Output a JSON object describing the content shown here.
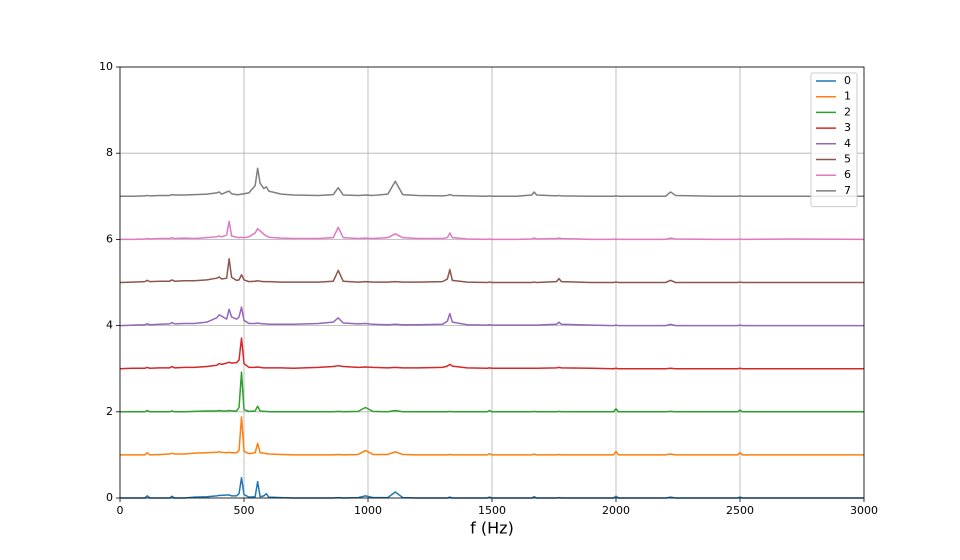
{
  "chart_data": {
    "type": "line",
    "x": [
      0,
      50,
      100,
      110,
      120,
      160,
      200,
      210,
      220,
      260,
      300,
      350,
      390,
      400,
      410,
      430,
      440,
      450,
      470,
      480,
      490,
      500,
      520,
      545,
      555,
      565,
      580,
      590,
      600,
      650,
      700,
      800,
      860,
      880,
      900,
      960,
      990,
      1020,
      1080,
      1110,
      1140,
      1200,
      1300,
      1320,
      1330,
      1340,
      1400,
      1480,
      1490,
      1500,
      1600,
      1660,
      1670,
      1680,
      1760,
      1770,
      1780,
      1900,
      1990,
      2000,
      2010,
      2200,
      2220,
      2240,
      2400,
      2490,
      2500,
      2510,
      2700,
      3000
    ],
    "series": [
      {
        "name": "0",
        "color": "#1f77b4",
        "values": [
          0,
          0,
          0,
          0.05,
          0,
          0,
          0,
          0.04,
          0,
          0,
          0.02,
          0.03,
          0.05,
          0.06,
          0.06,
          0.07,
          0.07,
          0.05,
          0.05,
          0.1,
          0.47,
          0.08,
          0.02,
          0.03,
          0.38,
          0.03,
          0.05,
          0.1,
          0.02,
          0.01,
          0,
          0,
          0,
          0.01,
          0,
          0.01,
          0.05,
          0.01,
          0.01,
          0.14,
          0.01,
          0,
          0,
          0,
          0.02,
          0,
          0,
          0,
          0.02,
          0,
          0,
          0,
          0.03,
          0,
          0,
          0.01,
          0,
          0,
          0,
          0.04,
          0,
          0,
          0.02,
          0,
          0,
          0,
          0.02,
          0,
          0,
          0
        ]
      },
      {
        "name": "1",
        "color": "#ff7f0e",
        "values": [
          1,
          1,
          1,
          1.05,
          1,
          1.01,
          1.02,
          1.04,
          1.02,
          1.02,
          1.04,
          1.05,
          1.06,
          1.07,
          1.06,
          1.05,
          1.06,
          1.05,
          1.05,
          1.1,
          1.88,
          1.08,
          1.03,
          1.05,
          1.27,
          1.05,
          1.04,
          1.03,
          1.02,
          1.01,
          1,
          1,
          1,
          1.01,
          1,
          1.01,
          1.1,
          1.01,
          1.01,
          1.07,
          1.01,
          1,
          1,
          1,
          1.01,
          1,
          1,
          1,
          1.03,
          1,
          1,
          1,
          1.02,
          1,
          1,
          1.01,
          1,
          1,
          1,
          1.08,
          1,
          1,
          1.02,
          1,
          1,
          1,
          1.05,
          1,
          1,
          1
        ]
      },
      {
        "name": "2",
        "color": "#2ca02c",
        "values": [
          2,
          2,
          2,
          2.03,
          2,
          2,
          2,
          2.02,
          2,
          2,
          2.01,
          2.02,
          2.02,
          2.03,
          2.02,
          2.02,
          2.03,
          2.02,
          2.02,
          2.1,
          2.92,
          2.05,
          2.01,
          2.02,
          2.13,
          2.02,
          2.01,
          2.01,
          2,
          2,
          2,
          2,
          2,
          2.01,
          2,
          2.01,
          2.1,
          2.01,
          2,
          2.03,
          2,
          2,
          2,
          2,
          2.01,
          2,
          2,
          2,
          2.03,
          2,
          2,
          2,
          2.01,
          2,
          2,
          2.01,
          2,
          2,
          2,
          2.07,
          2,
          2,
          2.01,
          2,
          2,
          2,
          2.04,
          2,
          2,
          2
        ]
      },
      {
        "name": "3",
        "color": "#d62728",
        "values": [
          3,
          3.01,
          3.01,
          3.03,
          3.01,
          3.02,
          3.02,
          3.05,
          3.02,
          3.03,
          3.03,
          3.05,
          3.08,
          3.12,
          3.1,
          3.13,
          3.15,
          3.13,
          3.14,
          3.2,
          3.71,
          3.12,
          3.03,
          3.03,
          3.04,
          3.03,
          3.02,
          3.02,
          3.02,
          3.02,
          3.01,
          3.03,
          3.05,
          3.07,
          3.05,
          3.03,
          3.04,
          3.03,
          3.02,
          3.03,
          3.02,
          3.02,
          3.03,
          3.06,
          3.1,
          3.06,
          3.02,
          3.01,
          3.02,
          3.01,
          3.01,
          3.01,
          3.01,
          3.01,
          3.02,
          3.03,
          3.02,
          3.01,
          3,
          3.01,
          3,
          3,
          3.01,
          3,
          3,
          3,
          3.01,
          3,
          3,
          3
        ]
      },
      {
        "name": "4",
        "color": "#9467bd",
        "values": [
          4,
          4.01,
          4.02,
          4.04,
          4.02,
          4.03,
          4.04,
          4.07,
          4.04,
          4.05,
          4.05,
          4.08,
          4.18,
          4.25,
          4.22,
          4.15,
          4.38,
          4.2,
          4.15,
          4.2,
          4.43,
          4.12,
          4.05,
          4.05,
          4.06,
          4.05,
          4.04,
          4.04,
          4.03,
          4.03,
          4.03,
          4.05,
          4.08,
          4.18,
          4.06,
          4.04,
          4.05,
          4.03,
          4.02,
          4.03,
          4.02,
          4.02,
          4.03,
          4.1,
          4.28,
          4.08,
          4.02,
          4.01,
          4.02,
          4.01,
          4.01,
          4.01,
          4.01,
          4.01,
          4.03,
          4.08,
          4.03,
          4.01,
          4,
          4.01,
          4,
          4,
          4.03,
          4,
          4,
          4,
          4.01,
          4,
          4,
          4
        ]
      },
      {
        "name": "5",
        "color": "#8c564b",
        "values": [
          5,
          5.01,
          5.02,
          5.05,
          5.02,
          5.03,
          5.03,
          5.06,
          5.03,
          5.04,
          5.04,
          5.06,
          5.1,
          5.13,
          5.08,
          5.1,
          5.55,
          5.12,
          5.05,
          5.06,
          5.18,
          5.06,
          5.02,
          5.03,
          5.04,
          5.03,
          5.02,
          5.02,
          5.02,
          5.01,
          5.01,
          5.01,
          5.03,
          5.28,
          5.03,
          5.01,
          5.02,
          5.01,
          5.01,
          5.02,
          5.01,
          5.01,
          5.02,
          5.08,
          5.3,
          5.05,
          5.01,
          5,
          5.01,
          5,
          5,
          5,
          5.01,
          5,
          5.02,
          5.09,
          5.02,
          5,
          5,
          5.01,
          5,
          5,
          5.05,
          5,
          5,
          5,
          5.01,
          5,
          5,
          5
        ]
      },
      {
        "name": "6",
        "color": "#e377c2",
        "values": [
          6,
          6,
          6.01,
          6.02,
          6.01,
          6.02,
          6.02,
          6.04,
          6.02,
          6.03,
          6.02,
          6.04,
          6.06,
          6.08,
          6.06,
          6.1,
          6.42,
          6.08,
          6.05,
          6.04,
          6.05,
          6.04,
          6.06,
          6.15,
          6.25,
          6.2,
          6.12,
          6.08,
          6.05,
          6.03,
          6.02,
          6.02,
          6.04,
          6.28,
          6.04,
          6.02,
          6.03,
          6.02,
          6.04,
          6.13,
          6.04,
          6.02,
          6.02,
          6.04,
          6.15,
          6.04,
          6.01,
          6,
          6.01,
          6,
          6,
          6.01,
          6.03,
          6.01,
          6.02,
          6.03,
          6.02,
          6,
          6,
          6.01,
          6,
          6,
          6.03,
          6.01,
          6,
          6,
          6.01,
          6,
          6.01,
          6
        ]
      },
      {
        "name": "7",
        "color": "#7f7f7f",
        "values": [
          7,
          7,
          7.01,
          7.02,
          7.01,
          7.02,
          7.02,
          7.04,
          7.03,
          7.03,
          7.04,
          7.05,
          7.08,
          7.1,
          7.05,
          7.1,
          7.12,
          7.06,
          7.04,
          7.04,
          7.05,
          7.06,
          7.08,
          7.25,
          7.65,
          7.3,
          7.18,
          7.22,
          7.12,
          7.05,
          7.03,
          7.02,
          7.04,
          7.2,
          7.03,
          7.02,
          7.03,
          7.02,
          7.05,
          7.35,
          7.04,
          7.02,
          7.01,
          7.02,
          7.04,
          7.02,
          7.01,
          7,
          7.01,
          7,
          7,
          7.03,
          7.1,
          7.03,
          7.01,
          7.02,
          7.01,
          7,
          7,
          7.01,
          7,
          7,
          7.1,
          7.02,
          7,
          7,
          7.01,
          7,
          7,
          7
        ]
      }
    ],
    "x_label": "f (Hz)",
    "xlim": [
      0,
      3000
    ],
    "xticks": [
      0,
      500,
      1000,
      1500,
      2000,
      2500,
      3000
    ],
    "ylim": [
      0,
      10
    ],
    "yticks": [
      0,
      2,
      4,
      6,
      8,
      10
    ],
    "grid": true,
    "legend": "upper right"
  }
}
